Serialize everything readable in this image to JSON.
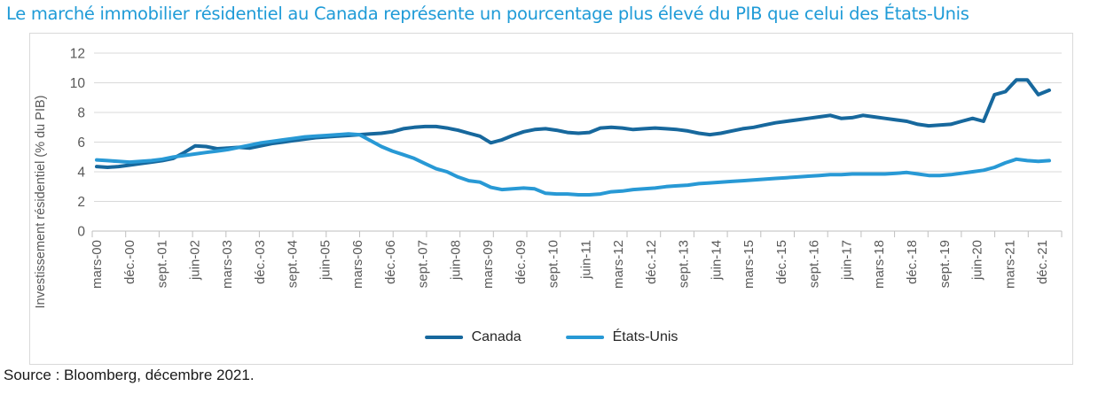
{
  "header": {
    "title": "Le marché immobilier résidentiel au Canada représente un pourcentage plus élevé du PIB que celui des États-Unis"
  },
  "footer": {
    "source": "Source : Bloomberg, décembre 2021."
  },
  "chart_data": {
    "type": "line",
    "title": "Le marché immobilier résidentiel au Canada représente un pourcentage plus élevé du PIB que celui des États-Unis",
    "ylabel": "Investissement résidentiel (% du PIB)",
    "ylim": [
      0,
      12
    ],
    "yticks": [
      0,
      2,
      4,
      6,
      8,
      10,
      12
    ],
    "grid": "horizontal",
    "legend_position": "bottom",
    "frequency": "quarterly",
    "points_per_tick_label": 3,
    "n_points": 88,
    "grid_color": "#D9D9D9",
    "axis_color": "#BFBFBF",
    "axis_text_color": "#595959",
    "title_color": "#1F9BD7",
    "categories": [
      "mars-00",
      "déc.-00",
      "sept.-01",
      "juin-02",
      "mars-03",
      "déc.-03",
      "sept.-04",
      "juin-05",
      "mars-06",
      "déc.-06",
      "sept.-07",
      "juin-08",
      "mars-09",
      "déc.-09",
      "sept.-10",
      "juin-11",
      "mars-12",
      "déc.-12",
      "sept.-13",
      "juin-14",
      "mars-15",
      "déc.-15",
      "sept.-16",
      "juin-17",
      "mars-18",
      "déc.-18",
      "sept.-19",
      "juin-20",
      "mars-21",
      "déc.-21"
    ],
    "series": [
      {
        "name": "Canada",
        "color": "#17689D",
        "values": [
          4.35,
          4.3,
          4.35,
          4.45,
          4.55,
          4.65,
          4.75,
          4.9,
          5.3,
          5.75,
          5.7,
          5.55,
          5.6,
          5.65,
          5.6,
          5.75,
          5.9,
          6.0,
          6.1,
          6.2,
          6.3,
          6.35,
          6.4,
          6.45,
          6.5,
          6.55,
          6.6,
          6.7,
          6.9,
          7.0,
          7.05,
          7.05,
          6.95,
          6.8,
          6.6,
          6.4,
          5.95,
          6.15,
          6.45,
          6.7,
          6.85,
          6.9,
          6.8,
          6.65,
          6.6,
          6.65,
          6.95,
          7.0,
          6.95,
          6.85,
          6.9,
          6.95,
          6.9,
          6.85,
          6.75,
          6.6,
          6.5,
          6.6,
          6.75,
          6.9,
          7.0,
          7.15,
          7.3,
          7.4,
          7.5,
          7.6,
          7.7,
          7.8,
          7.6,
          7.65,
          7.8,
          7.7,
          7.6,
          7.5,
          7.4,
          7.2,
          7.1,
          7.15,
          7.2,
          7.4,
          7.6,
          7.4,
          9.2,
          9.4,
          10.2,
          10.2,
          9.2,
          9.5
        ]
      },
      {
        "name": "États-Unis",
        "color": "#2899D5",
        "values": [
          4.8,
          4.75,
          4.7,
          4.65,
          4.7,
          4.75,
          4.85,
          5.0,
          5.1,
          5.2,
          5.3,
          5.4,
          5.5,
          5.65,
          5.8,
          5.95,
          6.05,
          6.15,
          6.25,
          6.35,
          6.4,
          6.45,
          6.5,
          6.55,
          6.5,
          6.1,
          5.7,
          5.4,
          5.15,
          4.9,
          4.55,
          4.2,
          4.0,
          3.65,
          3.4,
          3.3,
          2.95,
          2.8,
          2.85,
          2.9,
          2.85,
          2.55,
          2.5,
          2.5,
          2.45,
          2.45,
          2.5,
          2.65,
          2.7,
          2.8,
          2.85,
          2.9,
          3.0,
          3.05,
          3.1,
          3.2,
          3.25,
          3.3,
          3.35,
          3.4,
          3.45,
          3.5,
          3.55,
          3.6,
          3.65,
          3.7,
          3.75,
          3.8,
          3.8,
          3.85,
          3.85,
          3.85,
          3.85,
          3.9,
          3.95,
          3.85,
          3.75,
          3.75,
          3.8,
          3.9,
          4.0,
          4.1,
          4.3,
          4.6,
          4.85,
          4.75,
          4.7,
          4.75
        ]
      }
    ],
    "source": "Source : Bloomberg, décembre 2021."
  }
}
